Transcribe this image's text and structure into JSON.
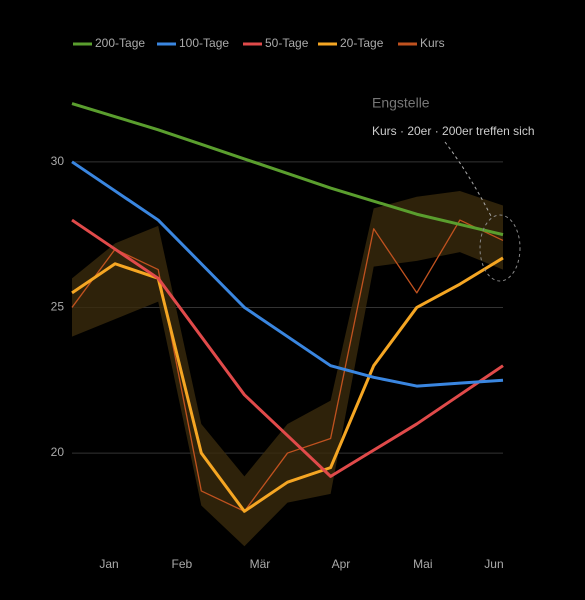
{
  "chart_data": {
    "type": "line",
    "x": [
      0,
      1,
      2,
      3,
      4,
      5,
      6,
      7,
      8,
      9,
      10
    ],
    "xlim": [
      0,
      10
    ],
    "xticks": [
      {
        "value": 0.86,
        "label": "Jan"
      },
      {
        "value": 2.55,
        "label": "Feb"
      },
      {
        "value": 4.36,
        "label": "Mär"
      },
      {
        "value": 6.24,
        "label": "Apr"
      },
      {
        "value": 8.14,
        "label": "Mai"
      },
      {
        "value": 9.79,
        "label": "Jun"
      }
    ],
    "ylim": [
      16.5,
      32.5
    ],
    "yticks": [
      20,
      25,
      30
    ],
    "grid": true,
    "legend": "top",
    "band": {
      "color": "#3a2a0c",
      "upper": [
        26.0,
        27.2,
        27.8,
        21.0,
        19.2,
        21.0,
        21.8,
        28.4,
        28.8,
        29.0,
        28.5
      ],
      "lower": [
        24.0,
        24.6,
        25.2,
        18.2,
        16.8,
        18.3,
        18.6,
        26.4,
        26.6,
        26.9,
        26.3
      ]
    },
    "series": [
      {
        "name": "200-Tage",
        "color": "#5a9e2e",
        "width": 3,
        "values": [
          32.0,
          31.55,
          31.1,
          30.6,
          30.1,
          29.6,
          29.1,
          28.65,
          28.2,
          27.85,
          27.5
        ]
      },
      {
        "name": "100-Tage",
        "color": "#3a86e0",
        "width": 3,
        "values": [
          30.0,
          29.0,
          28.0,
          26.5,
          25.0,
          24.0,
          23.0,
          22.6,
          22.3,
          22.4,
          22.5
        ]
      },
      {
        "name": "50-Tage",
        "color": "#e04a4a",
        "width": 3,
        "values": [
          28.0,
          27.0,
          26.0,
          24.0,
          22.0,
          20.6,
          19.2,
          20.1,
          21.0,
          22.0,
          23.0
        ]
      },
      {
        "name": "20-Tage",
        "color": "#f5a623",
        "width": 3,
        "values": [
          25.5,
          26.5,
          26.0,
          20.0,
          18.0,
          19.0,
          19.5,
          23.0,
          25.0,
          25.8,
          26.7
        ]
      },
      {
        "name": "Kurs",
        "color": "#c0521f",
        "width": 1.3,
        "values": [
          25.0,
          27.0,
          26.3,
          18.7,
          18.0,
          20.0,
          20.5,
          27.7,
          25.5,
          28.0,
          27.3
        ]
      }
    ],
    "annotation": {
      "title": "Engstelle",
      "text": "Kurs · 20er · 200er treffen sich"
    }
  }
}
